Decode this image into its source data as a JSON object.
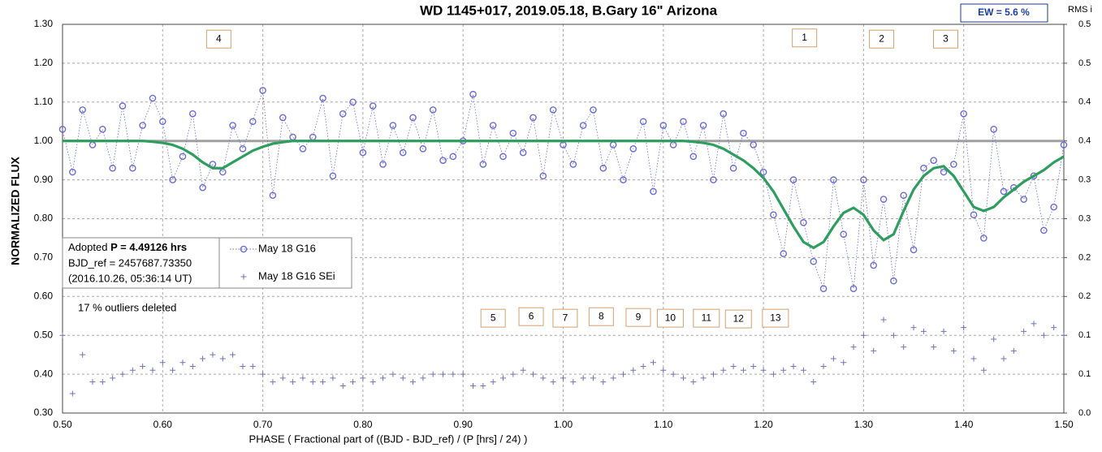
{
  "chart_data": {
    "type": "scatter",
    "title": "WD 1145+017, 2019.05.18, B.Gary 16\" Arizona",
    "xlabel": "PHASE ( Fractional part of ((BJD - BJD_ref) / (P [hrs] / 24) )",
    "ylabel": "NORMALIZED FLUX",
    "y2label": "RMS i",
    "ew_label": "EW =  5.6 %",
    "info": {
      "prefix": "Adopted",
      "period": "P = 4.49126 hrs",
      "bjd": "BJD_ref = 2457687.73350",
      "date": "(2016.10.26, 05:36:14 UT)"
    },
    "note": "17 % outliers deleted",
    "xlim": [
      0.5,
      1.5
    ],
    "xticks": [
      {
        "value": 0.5,
        "label": "0.50"
      },
      {
        "value": 0.6,
        "label": "0.60"
      },
      {
        "value": 0.7,
        "label": "0.70"
      },
      {
        "value": 0.8,
        "label": "0.80"
      },
      {
        "value": 0.9,
        "label": "0.90"
      },
      {
        "value": 1.0,
        "label": "1.00"
      },
      {
        "value": 1.1,
        "label": "1.10"
      },
      {
        "value": 1.2,
        "label": "1.20"
      },
      {
        "value": 1.3,
        "label": "1.30"
      },
      {
        "value": 1.4,
        "label": "1.40"
      },
      {
        "value": 1.5,
        "label": "1.50"
      }
    ],
    "ylim": [
      0.3,
      1.3
    ],
    "yticks": [
      {
        "value": 0.3,
        "label": "0.30"
      },
      {
        "value": 0.4,
        "label": "0.40"
      },
      {
        "value": 0.5,
        "label": "0.50"
      },
      {
        "value": 0.6,
        "label": "0.60"
      },
      {
        "value": 0.7,
        "label": "0.70"
      },
      {
        "value": 0.8,
        "label": "0.80"
      },
      {
        "value": 0.9,
        "label": "0.90"
      },
      {
        "value": 1.0,
        "label": "1.00"
      },
      {
        "value": 1.1,
        "label": "1.10"
      },
      {
        "value": 1.2,
        "label": "1.20"
      },
      {
        "value": 1.3,
        "label": "1.30"
      }
    ],
    "y2lim": [
      0,
      0.5
    ],
    "y2ticks": [
      {
        "value": 0,
        "label": "0.0"
      },
      {
        "value": 0.05,
        "label": "0.1"
      },
      {
        "value": 0.1,
        "label": "0.1"
      },
      {
        "value": 0.15,
        "label": "0.2"
      },
      {
        "value": 0.2,
        "label": "0.2"
      },
      {
        "value": 0.25,
        "label": "0.3"
      },
      {
        "value": 0.3,
        "label": "0.3"
      },
      {
        "value": 0.35,
        "label": "0.4"
      },
      {
        "value": 0.4,
        "label": "0.4"
      },
      {
        "value": 0.45,
        "label": "0.5"
      },
      {
        "value": 0.5,
        "label": "0.5"
      }
    ],
    "grid": true,
    "reference_line": {
      "value": 1.0,
      "color": "#a0a0a0"
    },
    "x": [
      0.5,
      0.51,
      0.52,
      0.53,
      0.54,
      0.55,
      0.56,
      0.57,
      0.58,
      0.59,
      0.6,
      0.61,
      0.62,
      0.63,
      0.64,
      0.65,
      0.66,
      0.67,
      0.68,
      0.69,
      0.7,
      0.71,
      0.72,
      0.73,
      0.74,
      0.75,
      0.76,
      0.77,
      0.78,
      0.79,
      0.8,
      0.81,
      0.82,
      0.83,
      0.84,
      0.85,
      0.86,
      0.87,
      0.88,
      0.89,
      0.9,
      0.91,
      0.92,
      0.93,
      0.94,
      0.95,
      0.96,
      0.97,
      0.98,
      0.99,
      1.0,
      1.01,
      1.02,
      1.03,
      1.04,
      1.05,
      1.06,
      1.07,
      1.08,
      1.09,
      1.1,
      1.11,
      1.12,
      1.13,
      1.14,
      1.15,
      1.16,
      1.17,
      1.18,
      1.19,
      1.2,
      1.21,
      1.22,
      1.23,
      1.24,
      1.25,
      1.26,
      1.27,
      1.28,
      1.29,
      1.3,
      1.31,
      1.32,
      1.33,
      1.34,
      1.35,
      1.36,
      1.37,
      1.38,
      1.39,
      1.4,
      1.41,
      1.42,
      1.43,
      1.44,
      1.45,
      1.46,
      1.47,
      1.48,
      1.49,
      1.5
    ],
    "series": [
      {
        "name": "May 18 G16",
        "marker": "circle",
        "color": "#6b6bd6",
        "values": [
          1.03,
          0.92,
          1.08,
          0.99,
          1.03,
          0.93,
          1.09,
          0.93,
          1.04,
          1.11,
          1.05,
          0.9,
          0.96,
          1.07,
          0.88,
          0.94,
          0.92,
          1.04,
          0.98,
          1.05,
          1.13,
          0.86,
          1.06,
          1.01,
          0.98,
          1.01,
          1.11,
          0.91,
          1.07,
          1.1,
          0.97,
          1.09,
          0.94,
          1.04,
          0.97,
          1.06,
          0.98,
          1.08,
          0.95,
          0.96,
          1.0,
          1.12,
          0.94,
          1.04,
          0.96,
          1.02,
          0.97,
          1.06,
          0.91,
          1.08,
          0.99,
          0.94,
          1.04,
          1.08,
          0.93,
          0.99,
          0.9,
          0.98,
          1.05,
          0.87,
          1.04,
          0.99,
          1.05,
          0.96,
          1.04,
          0.9,
          1.07,
          0.93,
          1.02,
          0.99,
          0.92,
          0.81,
          0.71,
          0.9,
          0.79,
          0.69,
          0.62,
          0.9,
          0.76,
          0.62,
          0.9,
          0.68,
          0.85,
          0.64,
          0.86,
          0.72,
          0.93,
          0.95,
          0.92,
          0.94,
          1.07,
          0.81,
          0.75,
          1.03,
          0.87,
          0.88,
          0.85,
          0.91,
          0.77,
          0.83,
          0.99
        ]
      },
      {
        "name": "May 18 G16 SEi",
        "marker": "plus",
        "color": "#7272b8",
        "values": [
          0.5,
          0.35,
          0.45,
          0.38,
          0.38,
          0.39,
          0.4,
          0.41,
          0.42,
          0.41,
          0.43,
          0.41,
          0.43,
          0.42,
          0.44,
          0.45,
          0.44,
          0.45,
          0.42,
          0.42,
          0.4,
          0.38,
          0.39,
          0.38,
          0.39,
          0.38,
          0.38,
          0.39,
          0.37,
          0.38,
          0.39,
          0.38,
          0.39,
          0.4,
          0.39,
          0.38,
          0.39,
          0.4,
          0.4,
          0.4,
          0.4,
          0.37,
          0.37,
          0.38,
          0.39,
          0.4,
          0.41,
          0.4,
          0.39,
          0.38,
          0.39,
          0.38,
          0.39,
          0.39,
          0.38,
          0.39,
          0.4,
          0.41,
          0.42,
          0.43,
          0.41,
          0.4,
          0.39,
          0.38,
          0.39,
          0.4,
          0.41,
          0.42,
          0.41,
          0.42,
          0.41,
          0.4,
          0.41,
          0.42,
          0.41,
          0.38,
          0.42,
          0.44,
          0.43,
          0.47,
          0.5,
          0.46,
          0.54,
          0.5,
          0.47,
          0.52,
          0.51,
          0.47,
          0.51,
          0.46,
          0.52,
          0.44,
          0.41,
          0.49,
          0.44,
          0.46,
          0.51,
          0.53,
          0.5,
          0.52,
          0.5
        ]
      },
      {
        "marker": "line",
        "color": "#2e9e5e",
        "values": [
          1.0,
          1.0,
          1.0,
          1.0,
          1.0,
          1.0,
          1.0,
          1.0,
          1.0,
          0.998,
          0.995,
          0.99,
          0.98,
          0.965,
          0.945,
          0.93,
          0.93,
          0.945,
          0.96,
          0.975,
          0.985,
          0.993,
          0.997,
          1.0,
          1.0,
          1.0,
          1.0,
          1.0,
          1.0,
          1.0,
          1.0,
          1.0,
          1.0,
          1.0,
          1.0,
          1.0,
          1.0,
          1.0,
          1.0,
          1.0,
          1.0,
          1.0,
          1.0,
          1.0,
          1.0,
          1.0,
          1.0,
          1.0,
          1.0,
          1.0,
          1.0,
          1.0,
          1.0,
          1.0,
          1.0,
          1.0,
          1.0,
          1.0,
          1.0,
          1.0,
          1.0,
          1.0,
          1.0,
          0.998,
          0.995,
          0.99,
          0.98,
          0.965,
          0.95,
          0.93,
          0.905,
          0.87,
          0.825,
          0.78,
          0.74,
          0.725,
          0.74,
          0.78,
          0.815,
          0.828,
          0.81,
          0.77,
          0.745,
          0.76,
          0.82,
          0.875,
          0.91,
          0.93,
          0.935,
          0.91,
          0.87,
          0.83,
          0.82,
          0.83,
          0.855,
          0.875,
          0.895,
          0.91,
          0.925,
          0.945,
          0.96
        ]
      }
    ],
    "annotations": [
      {
        "text": "4",
        "x": 0.656,
        "y": 1.262
      },
      {
        "text": "1",
        "x": 1.241,
        "y": 1.265
      },
      {
        "text": "2",
        "x": 1.318,
        "y": 1.262
      },
      {
        "text": "3",
        "x": 1.382,
        "y": 1.262
      },
      {
        "text": "5",
        "x": 0.93,
        "y": 0.544
      },
      {
        "text": "6",
        "x": 0.968,
        "y": 0.548
      },
      {
        "text": "7",
        "x": 1.002,
        "y": 0.544
      },
      {
        "text": "8",
        "x": 1.038,
        "y": 0.548
      },
      {
        "text": "9",
        "x": 1.075,
        "y": 0.546
      },
      {
        "text": "10",
        "x": 1.107,
        "y": 0.544
      },
      {
        "text": "11",
        "x": 1.143,
        "y": 0.544
      },
      {
        "text": "12",
        "x": 1.175,
        "y": 0.542
      },
      {
        "text": "13",
        "x": 1.212,
        "y": 0.544
      }
    ]
  }
}
